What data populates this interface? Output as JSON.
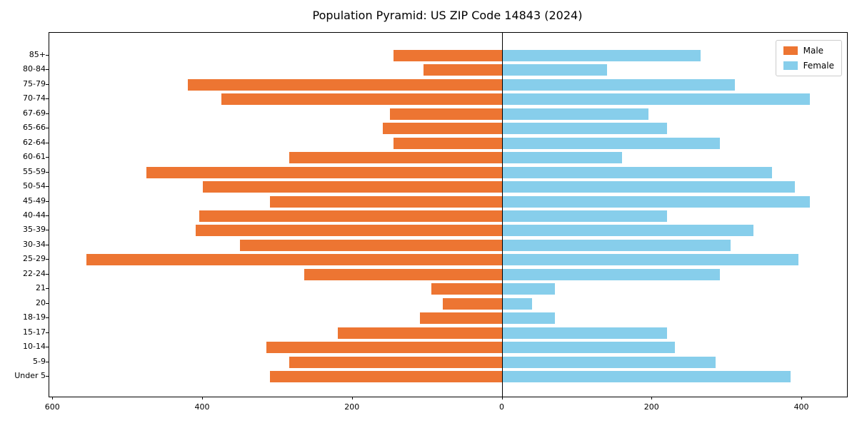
{
  "chart_data": {
    "type": "bar",
    "subtype": "population-pyramid",
    "title": "Population Pyramid: US ZIP Code 14843 (2024)",
    "categories": [
      "85+",
      "80-84",
      "75-79",
      "70-74",
      "67-69",
      "65-66",
      "62-64",
      "60-61",
      "55-59",
      "50-54",
      "45-49",
      "40-44",
      "35-39",
      "30-34",
      "25-29",
      "22-24",
      "21",
      "20",
      "18-19",
      "15-17",
      "10-14",
      "5-9",
      "Under 5"
    ],
    "series": [
      {
        "name": "Male",
        "side": "left",
        "color": "#ED7532",
        "values": [
          145,
          105,
          420,
          375,
          150,
          160,
          145,
          285,
          475,
          400,
          310,
          405,
          410,
          350,
          555,
          265,
          95,
          80,
          110,
          220,
          315,
          285,
          310
        ]
      },
      {
        "name": "Female",
        "side": "right",
        "color": "#87CEEB",
        "values": [
          265,
          140,
          310,
          410,
          195,
          220,
          290,
          160,
          360,
          390,
          410,
          220,
          335,
          305,
          395,
          290,
          70,
          40,
          70,
          220,
          230,
          285,
          385
        ]
      }
    ],
    "xlim": [
      -605,
      460
    ],
    "xticks": [
      -600,
      -400,
      -200,
      0,
      200,
      400
    ],
    "xtick_labels": [
      "600",
      "400",
      "200",
      "0",
      "200",
      "400"
    ],
    "grid": false,
    "legend_position": "upper-right",
    "zero_line": true
  }
}
